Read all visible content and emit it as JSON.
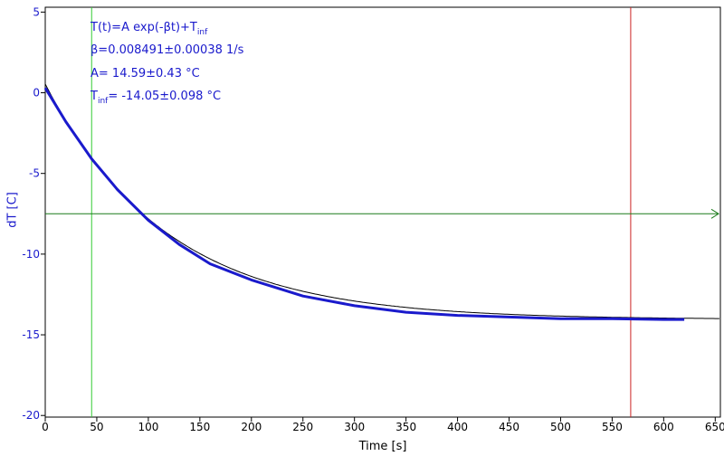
{
  "chart_data": {
    "type": "line",
    "xlabel": "Time [s]",
    "ylabel": "dT [C]",
    "xlim": [
      0,
      655
    ],
    "ylim": [
      -20.1,
      5.3
    ],
    "x_ticks": [
      0,
      50,
      100,
      150,
      200,
      250,
      300,
      350,
      400,
      450,
      500,
      550,
      600,
      650
    ],
    "y_ticks": [
      5,
      0,
      -5,
      -10,
      -15,
      -20
    ],
    "grid": false,
    "annotations": {
      "line1_main": "T(t)=A exp(-βt)+T",
      "line1_sub": "inf",
      "line2": "β=0.008491±0.00038 1/s",
      "line3": "A= 14.59±0.43 °C",
      "line4_main": "T",
      "line4_sub": "inf",
      "line4_rest": "= -14.05±0.098 °C"
    },
    "fit_params": {
      "A": 14.59,
      "beta": 0.008491,
      "T_inf": -14.05
    },
    "markers": {
      "green_vline_x": 45,
      "red_vline_x": 568,
      "horizontal_line_y": -7.5
    },
    "series": [
      {
        "type": "data",
        "x": [
          0,
          20,
          45,
          70,
          100,
          130,
          160,
          200,
          250,
          300,
          350,
          400,
          450,
          500,
          550,
          600,
          620
        ],
        "y": [
          0.3,
          -1.8,
          -4.1,
          -6.0,
          -7.9,
          -9.4,
          -10.6,
          -11.6,
          -12.6,
          -13.2,
          -13.6,
          -13.8,
          -13.9,
          -14.0,
          -14.0,
          -14.05,
          -14.05
        ]
      },
      {
        "type": "fit",
        "x_range": [
          0,
          655
        ]
      }
    ],
    "colors": {
      "data": "#1a1acc",
      "fit": "#000000",
      "green": "#33cc33",
      "red": "#cc2222",
      "hline": "#1a7a1a",
      "text": "#1a1acc"
    }
  }
}
